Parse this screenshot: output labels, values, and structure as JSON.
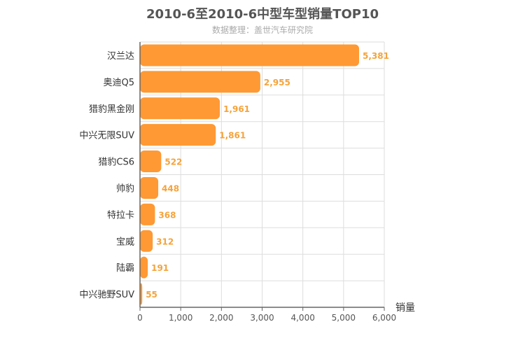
{
  "chart_data": {
    "type": "bar",
    "orientation": "horizontal",
    "title": "2010-6至2010-6中型车型销量TOP10",
    "subtitle": "数据整理：盖世汽车研究院",
    "xlabel": "销量",
    "ylabel": "",
    "xlim": [
      0,
      6000
    ],
    "xticks": [
      0,
      1000,
      2000,
      3000,
      4000,
      5000,
      6000
    ],
    "xtick_labels": [
      "0",
      "1,000",
      "2,000",
      "3,000",
      "4,000",
      "5,000",
      "6,000"
    ],
    "categories": [
      "汉兰达",
      "奥迪Q5",
      "猎豹黑金刚",
      "中兴无限SUV",
      "猎豹CS6",
      "帅豹",
      "特拉卡",
      "宝威",
      "陆霸",
      "中兴驰野SUV"
    ],
    "values": [
      5381,
      2955,
      1961,
      1861,
      522,
      448,
      368,
      312,
      191,
      55
    ],
    "value_labels": [
      "5,381",
      "2,955",
      "1,961",
      "1,861",
      "522",
      "448",
      "368",
      "312",
      "191",
      "55"
    ],
    "bar_color": "#ff9933",
    "label_color": "#f5a33a",
    "grid": true,
    "legend": "none"
  }
}
